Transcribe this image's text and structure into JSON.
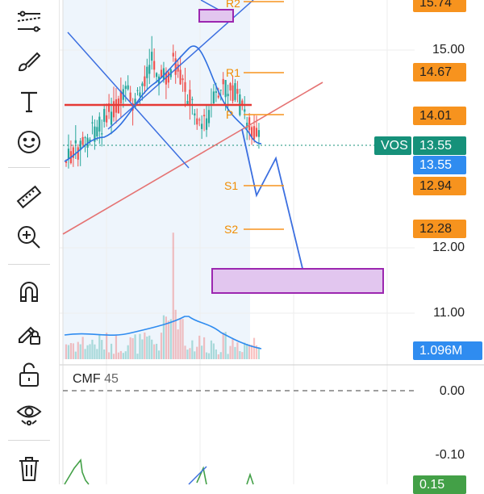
{
  "toolbar": {
    "tools": [
      {
        "name": "trend-line-tool-icon"
      },
      {
        "name": "brush-tool-icon"
      },
      {
        "name": "text-tool-icon"
      },
      {
        "name": "emoji-tool-icon"
      },
      {
        "name": "ruler-tool-icon"
      },
      {
        "name": "zoom-in-tool-icon"
      },
      {
        "name": "magnet-tool-icon"
      },
      {
        "name": "lock-drawing-icon"
      },
      {
        "name": "unlock-icon"
      },
      {
        "name": "eye-hide-icon"
      },
      {
        "name": "trash-icon"
      }
    ]
  },
  "price_axis": {
    "labels": [
      "15.00",
      "12.00",
      "11.00"
    ],
    "cmf_labels": [
      "0.00",
      "-0.10"
    ]
  },
  "tags": {
    "r2_price": "15.74",
    "r1_price": "14.67",
    "p_price": "14.01",
    "symbol": "VOS",
    "last_price": "13.55",
    "last_price_blue": "13.55",
    "s1_price": "12.94",
    "s2_price": "12.28",
    "volume": "1.096M",
    "cmf_value": "0.15"
  },
  "levels": {
    "r2": "R2",
    "r1": "R1",
    "p": "P",
    "s1": "S1",
    "s2": "S2"
  },
  "indicator": {
    "name": "CMF",
    "period": "45"
  },
  "colors": {
    "up": "#26a69a",
    "down": "#ef5350",
    "pivot": "#f7931e",
    "drawing_blue": "#2f6fe0",
    "drawing_red": "#e53935",
    "highlight_box": "#9c27b0"
  }
}
